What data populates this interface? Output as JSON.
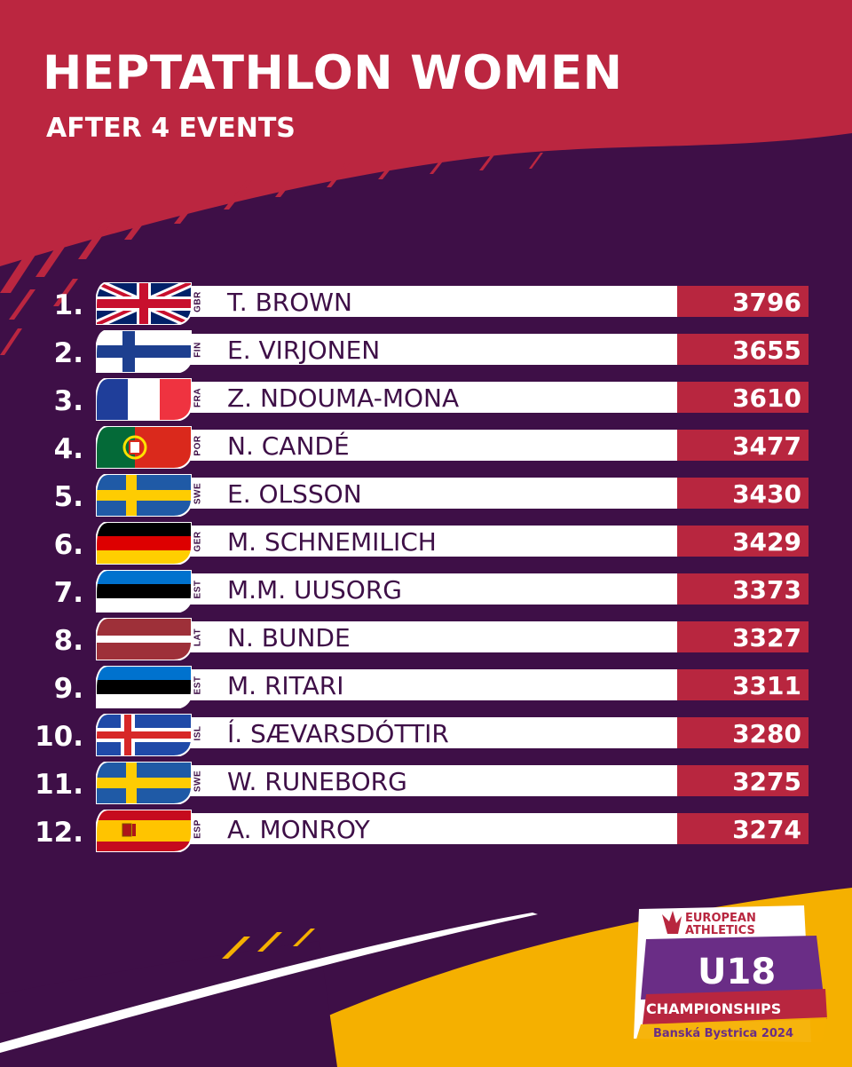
{
  "header": {
    "title": "HEPTATHLON WOMEN",
    "subtitle": "AFTER 4 EVENTS"
  },
  "standings": [
    {
      "rank": "1.",
      "code": "GBR",
      "name": "T. BROWN",
      "points": "3796",
      "flag": "gbr"
    },
    {
      "rank": "2.",
      "code": "FIN",
      "name": "E. VIRJONEN",
      "points": "3655",
      "flag": "fin"
    },
    {
      "rank": "3.",
      "code": "FRA",
      "name": "Z. NDOUMA-MONA",
      "points": "3610",
      "flag": "fra"
    },
    {
      "rank": "4.",
      "code": "POR",
      "name": "N. CANDÉ",
      "points": "3477",
      "flag": "por"
    },
    {
      "rank": "5.",
      "code": "SWE",
      "name": "E. OLSSON",
      "points": "3430",
      "flag": "swe"
    },
    {
      "rank": "6.",
      "code": "GER",
      "name": "M. SCHNEMILICH",
      "points": "3429",
      "flag": "ger"
    },
    {
      "rank": "7.",
      "code": "EST",
      "name": "M.M. UUSORG",
      "points": "3373",
      "flag": "est"
    },
    {
      "rank": "8.",
      "code": "LAT",
      "name": "N. BUNDE",
      "points": "3327",
      "flag": "lat"
    },
    {
      "rank": "9.",
      "code": "EST",
      "name": "M. RITARI",
      "points": "3311",
      "flag": "est"
    },
    {
      "rank": "10.",
      "code": "ISL",
      "name": "Í. SÆVARSDÓTTIR",
      "points": "3280",
      "flag": "isl"
    },
    {
      "rank": "11.",
      "code": "SWE",
      "name": "W. RUNEBORG",
      "points": "3275",
      "flag": "swe"
    },
    {
      "rank": "12.",
      "code": "ESP",
      "name": "A. MONROY",
      "points": "3274",
      "flag": "esp"
    }
  ],
  "logo": {
    "line1": "EUROPEAN",
    "line2": "ATHLETICS",
    "event": "U18",
    "name": "CHAMPIONSHIPS",
    "location": "Banská Bystrica 2024"
  },
  "colors": {
    "purple": "#3e0f47",
    "red": "#b8263f",
    "gold": "#f5b000",
    "white": "#ffffff"
  }
}
